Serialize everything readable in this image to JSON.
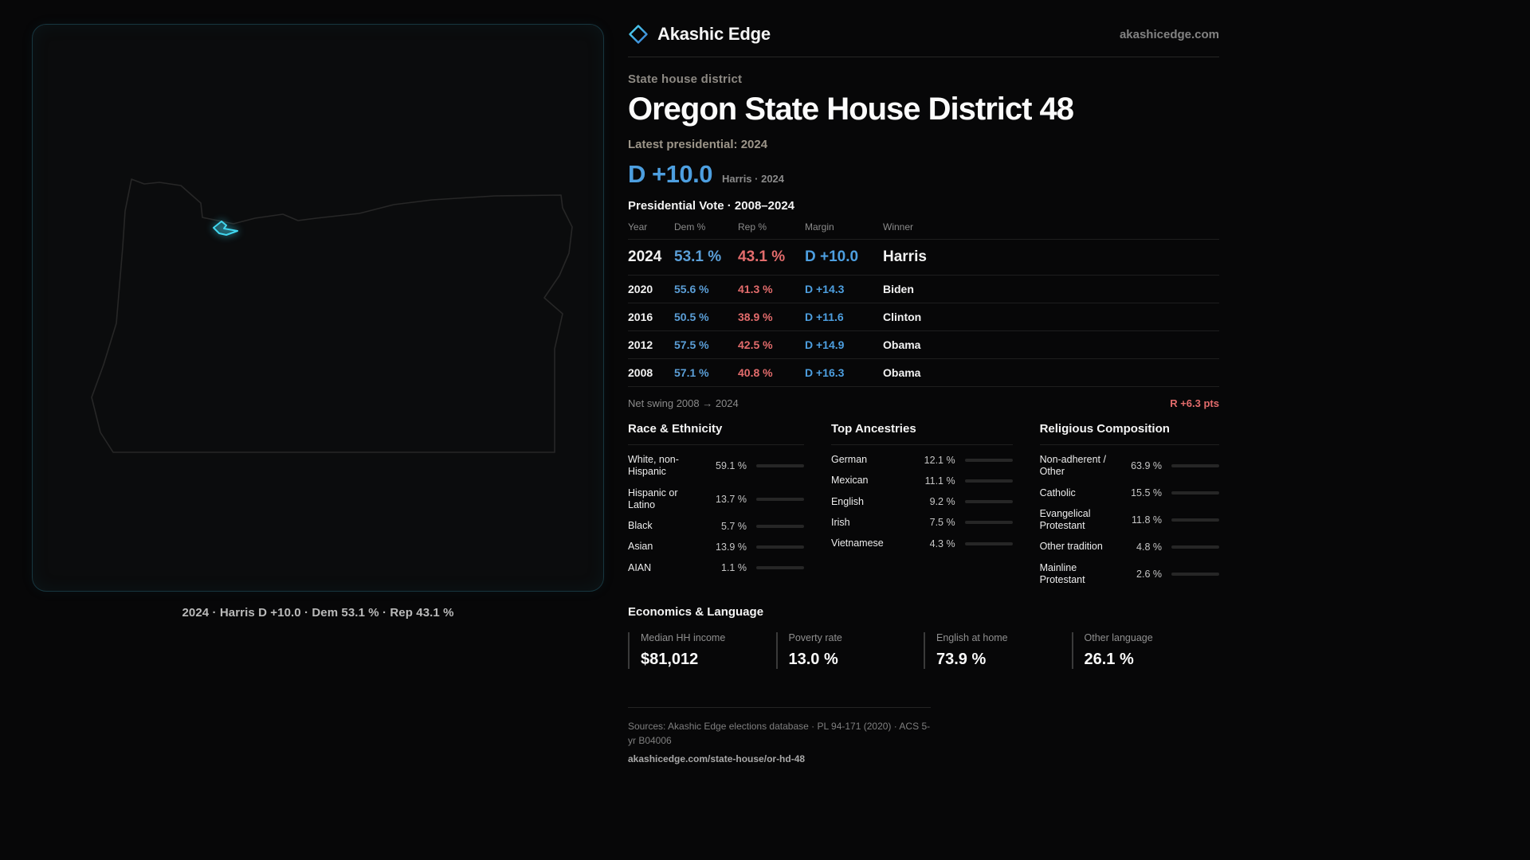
{
  "brand": {
    "name": "Akashic Edge",
    "domain": "akashicedge.com",
    "accent": "#41d6ee"
  },
  "map": {
    "caption": "2024 · Harris D +10.0 · Dem 53.1 % · Rep 43.1 %"
  },
  "header": {
    "kicker": "State house district",
    "title": "Oregon State House District 48",
    "latest_label": "Latest presidential: 2024",
    "margin_big": "D +10.0",
    "margin_sub": "Harris · 2024"
  },
  "table": {
    "title": "Presidential Vote · 2008–2024",
    "columns": {
      "year": "Year",
      "dem": "Dem %",
      "rep": "Rep %",
      "margin": "Margin",
      "winner": "Winner"
    },
    "rows": [
      {
        "year": "2024",
        "dem": "53.1 %",
        "rep": "43.1 %",
        "margin": "D +10.0",
        "winner": "Harris"
      },
      {
        "year": "2020",
        "dem": "55.6 %",
        "rep": "41.3 %",
        "margin": "D +14.3",
        "winner": "Biden"
      },
      {
        "year": "2016",
        "dem": "50.5 %",
        "rep": "38.9 %",
        "margin": "D +11.6",
        "winner": "Clinton"
      },
      {
        "year": "2012",
        "dem": "57.5 %",
        "rep": "42.5 %",
        "margin": "D +14.9",
        "winner": "Obama"
      },
      {
        "year": "2008",
        "dem": "57.1 %",
        "rep": "40.8 %",
        "margin": "D +16.3",
        "winner": "Obama"
      }
    ],
    "net_swing_label": "Net swing 2008 → 2024",
    "net_swing_value": "R +6.3 pts"
  },
  "colors": {
    "dem": "#5b9fd8",
    "rep": "#e36c6c",
    "margin_blue": "#4d9fe0"
  },
  "demographics": {
    "race": {
      "title": "Race & Ethnicity",
      "rows": [
        {
          "label": "White, non-Hispanic",
          "value": "59.1 %",
          "pct": 59.1,
          "color": "#c9cdd2"
        },
        {
          "label": "Hispanic or Latino",
          "value": "13.7 %",
          "pct": 13.7,
          "color": "#e0a43c"
        },
        {
          "label": "Black",
          "value": "5.7 %",
          "pct": 5.7,
          "color": "#8a6fd1"
        },
        {
          "label": "Asian",
          "value": "13.9 %",
          "pct": 13.9,
          "color": "#45bd8e"
        },
        {
          "label": "AIAN",
          "value": "1.1 %",
          "pct": 1.1,
          "color": "#c96a4a"
        }
      ]
    },
    "ancestries": {
      "title": "Top Ancestries",
      "rows": [
        {
          "label": "German",
          "value": "12.1 %",
          "pct": 12.1,
          "color": "#9aa0a6"
        },
        {
          "label": "Mexican",
          "value": "11.1 %",
          "pct": 11.1,
          "color": "#e0a43c"
        },
        {
          "label": "English",
          "value": "9.2 %",
          "pct": 9.2,
          "color": "#9aa0a6"
        },
        {
          "label": "Irish",
          "value": "7.5 %",
          "pct": 7.5,
          "color": "#9aa0a6"
        },
        {
          "label": "Vietnamese",
          "value": "4.3 %",
          "pct": 4.3,
          "color": "#3fbfb0"
        }
      ]
    },
    "religion": {
      "title": "Religious Composition",
      "rows": [
        {
          "label": "Non-adherent / Other",
          "value": "63.9 %",
          "pct": 63.9,
          "color": "#c9cdd2"
        },
        {
          "label": "Catholic",
          "value": "15.5 %",
          "pct": 15.5,
          "color": "#e0b53c"
        },
        {
          "label": "Evangelical Protestant",
          "value": "11.8 %",
          "pct": 11.8,
          "color": "#e57373"
        },
        {
          "label": "Other tradition",
          "value": "4.8 %",
          "pct": 4.8,
          "color": "#9aa0a6"
        },
        {
          "label": "Mainline Protestant",
          "value": "2.6 %",
          "pct": 2.6,
          "color": "#6b9bd2"
        }
      ]
    }
  },
  "economics": {
    "title": "Economics & Language",
    "stats": [
      {
        "label": "Median HH income",
        "value": "$81,012"
      },
      {
        "label": "Poverty rate",
        "value": "13.0 %"
      },
      {
        "label": "English at home",
        "value": "73.9 %"
      },
      {
        "label": "Other language",
        "value": "26.1 %"
      }
    ]
  },
  "footer": {
    "sources": "Sources: Akashic Edge elections database · PL 94-171 (2020) · ACS 5-yr B04006",
    "permalink": "akashicedge.com/state-house/or-hd-48"
  }
}
